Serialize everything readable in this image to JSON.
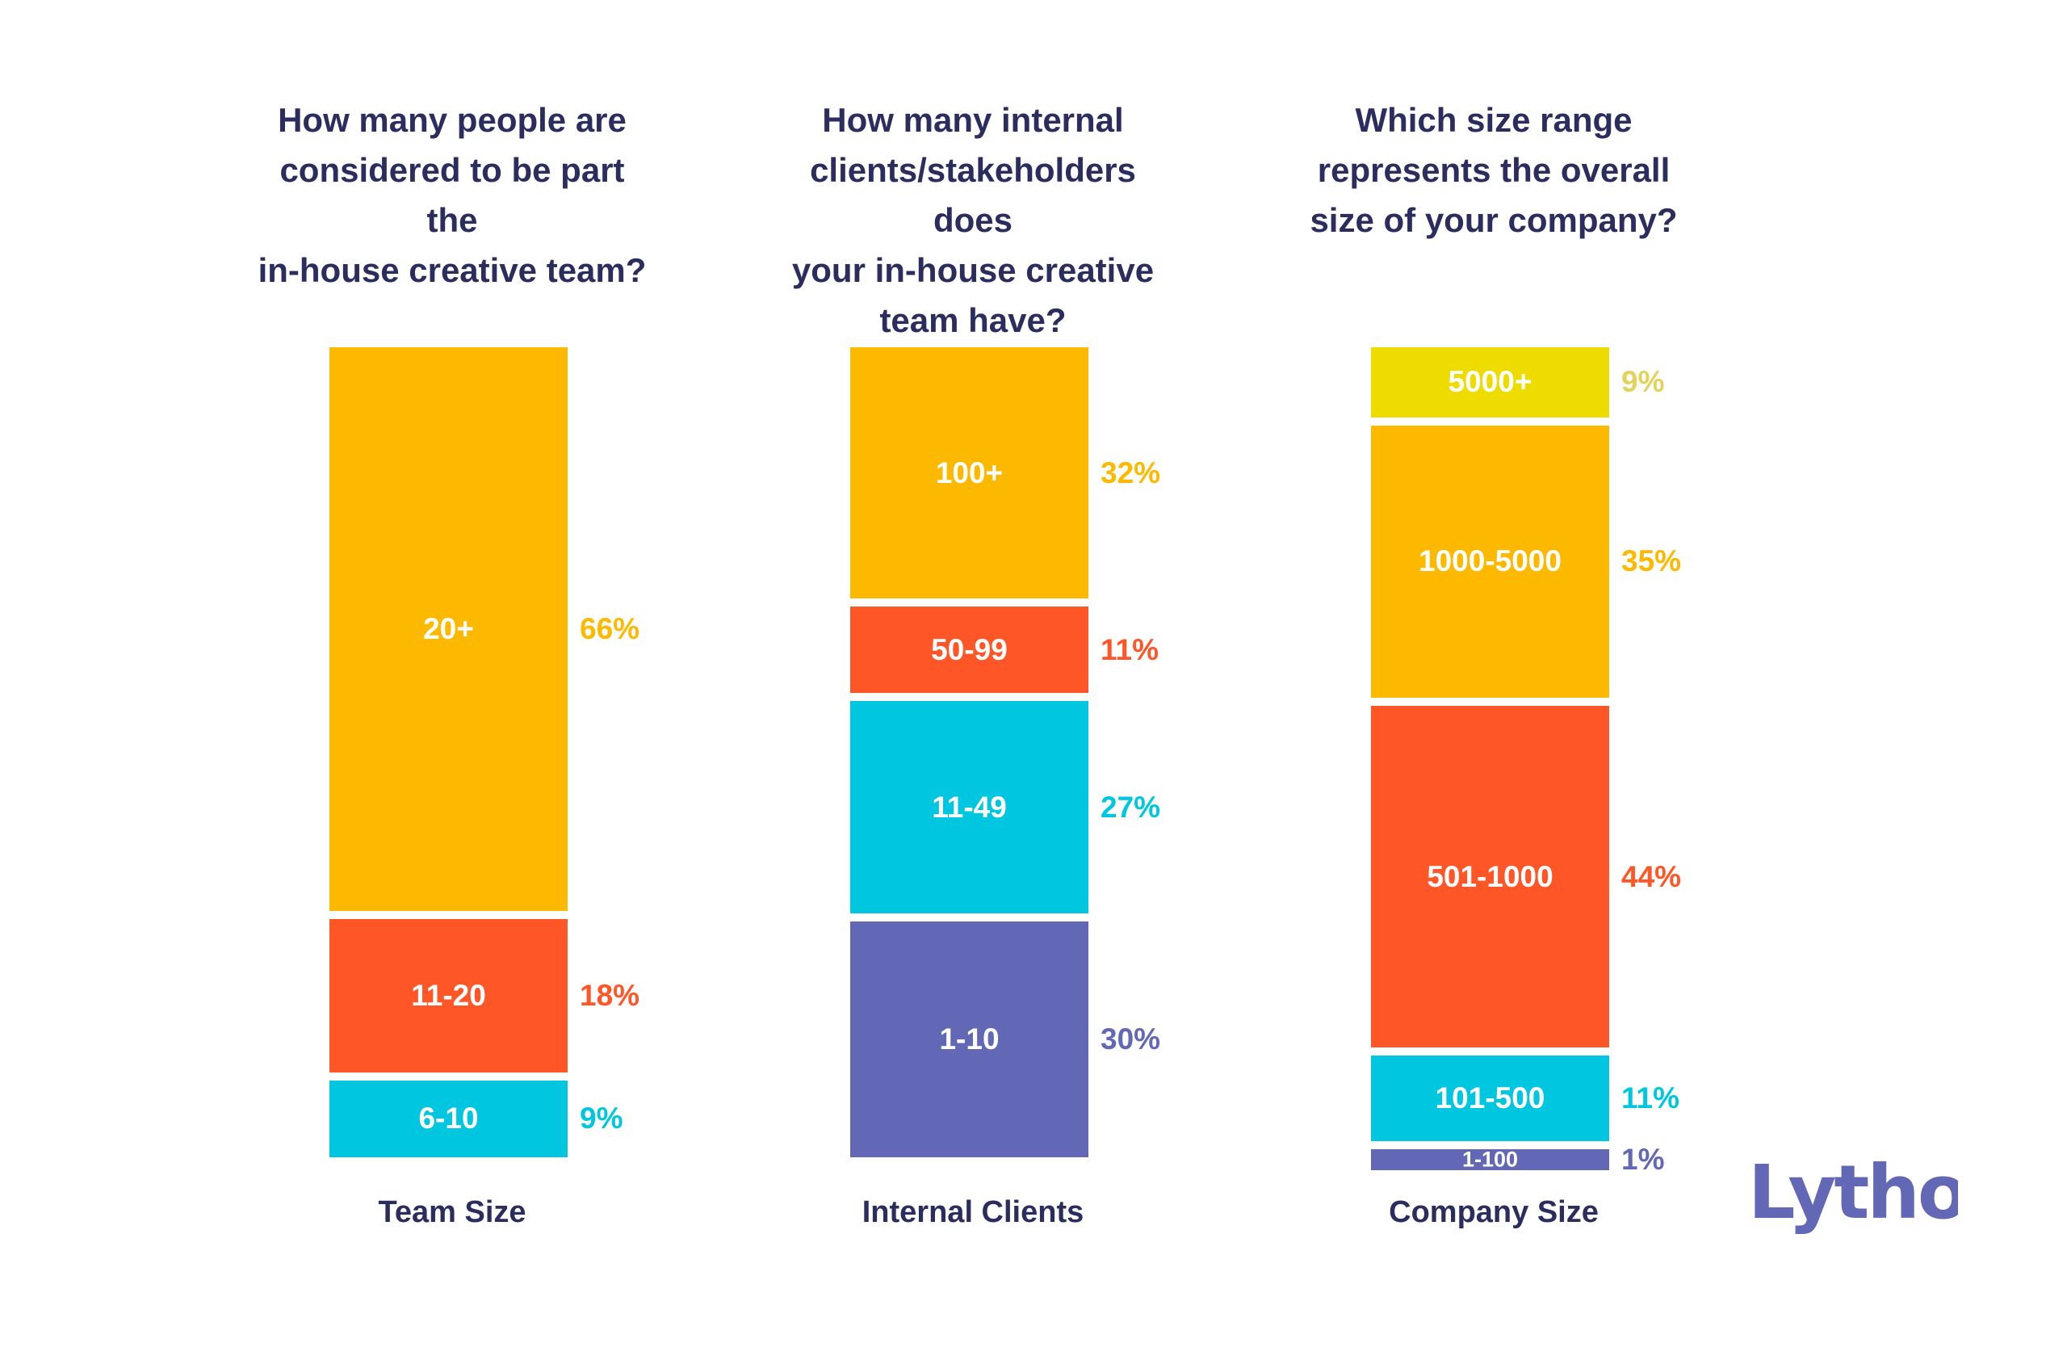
{
  "colors": {
    "orange_yellow": "#fdb900",
    "red_orange": "#ff5627",
    "cyan": "#00c6e0",
    "purple": "#6268b5",
    "yellow": "#eedc00",
    "yellow_text": "#e3d25c",
    "navy": "#2b2d5e",
    "logo": "#6268b5"
  },
  "logo": {
    "text": "Lytho"
  },
  "chart_data": [
    {
      "type": "bar",
      "stacked": true,
      "title_lines": [
        "How many people are",
        "considered to be part the",
        "in-house creative team?"
      ],
      "xlabel": "Team Size",
      "series": [
        {
          "name": "20+",
          "value": 66,
          "pct_label": "66%",
          "color": "#fdb900",
          "pct_color": "#fdb900"
        },
        {
          "name": "11-20",
          "value": 18,
          "pct_label": "18%",
          "color": "#ff5627",
          "pct_color": "#ff5627"
        },
        {
          "name": "6-10",
          "value": 9,
          "pct_label": "9%",
          "color": "#00c6e0",
          "pct_color": "#00c6e0"
        }
      ]
    },
    {
      "type": "bar",
      "stacked": true,
      "title_lines": [
        "How many internal",
        "clients/stakeholders does",
        "your in-house creative",
        "team have?"
      ],
      "xlabel": "Internal Clients",
      "series": [
        {
          "name": "100+",
          "value": 32,
          "pct_label": "32%",
          "color": "#fdb900",
          "pct_color": "#fdb900"
        },
        {
          "name": "50-99",
          "value": 11,
          "pct_label": "11%",
          "color": "#ff5627",
          "pct_color": "#ff5627"
        },
        {
          "name": "11-49",
          "value": 27,
          "pct_label": "27%",
          "color": "#00c6e0",
          "pct_color": "#00c6e0"
        },
        {
          "name": "1-10",
          "value": 30,
          "pct_label": "30%",
          "color": "#6268b5",
          "pct_color": "#6268b5"
        }
      ]
    },
    {
      "type": "bar",
      "stacked": true,
      "title_lines": [
        "Which size range",
        "represents the overall",
        "size of your company?"
      ],
      "xlabel": "Company Size",
      "series": [
        {
          "name": "5000+",
          "value": 9,
          "pct_label": "9%",
          "color": "#eedc00",
          "pct_color": "#e3d25c"
        },
        {
          "name": "1000-5000",
          "value": 35,
          "pct_label": "35%",
          "color": "#fdb900",
          "pct_color": "#fdb900"
        },
        {
          "name": "501-1000",
          "value": 44,
          "pct_label": "44%",
          "color": "#ff5627",
          "pct_color": "#ff5627"
        },
        {
          "name": "101-500",
          "value": 11,
          "pct_label": "11%",
          "color": "#00c6e0",
          "pct_color": "#00c6e0"
        },
        {
          "name": "1-100",
          "value": 1,
          "pct_label": "1%",
          "color": "#6268b5",
          "pct_color": "#6268b5"
        }
      ]
    }
  ]
}
